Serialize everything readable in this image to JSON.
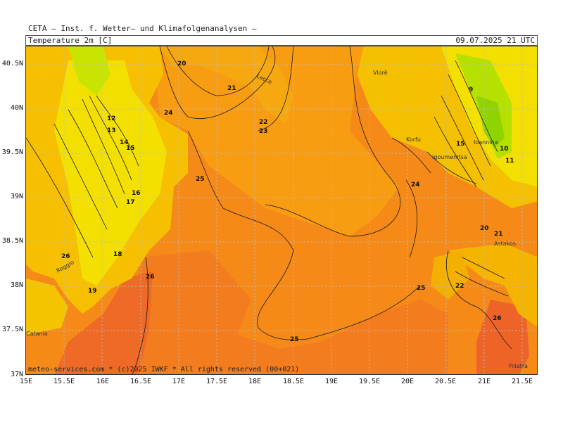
{
  "header": {
    "title": "CETA — Inst. f. Wetter— und Klimafolgenanalysen —",
    "variable": "Temperature 2m [C]",
    "valid_time": "09.07.2025 21 UTC"
  },
  "footer": {
    "credit": "meteo-services.com * (c)2025 IWKF * All rights reserved (00+021)"
  },
  "axes": {
    "lat_ticks": [
      "40.5N",
      "40N",
      "39.5N",
      "39N",
      "38.5N",
      "38N",
      "37.5N",
      "37N"
    ],
    "lon_ticks": [
      "15E",
      "15.5E",
      "16E",
      "16.5E",
      "17E",
      "17.5E",
      "18E",
      "18.5E",
      "19E",
      "19.5E",
      "20E",
      "20.5E",
      "21E",
      "21.5E"
    ]
  },
  "palette": {
    "land_cool": "#b7e000",
    "land_mild": "#f6e100",
    "land_warm": "#f4b800",
    "sea_main": "#f79a10",
    "sea_warm": "#f07a20",
    "sea_hot": "#ee6428",
    "contour": "#1a1a1a",
    "grid": "#bdbdbd"
  },
  "contour_labels": [
    "20",
    "21",
    "22",
    "23",
    "24",
    "25",
    "26",
    "12",
    "13",
    "14",
    "15",
    "16",
    "17",
    "18",
    "19",
    "9",
    "10",
    "11",
    "15",
    "25",
    "25",
    "26",
    "26",
    "24",
    "22",
    "21",
    "20"
  ],
  "place_names": [
    "Lecce",
    "Vlorë",
    "Korfu",
    "Igoumenitsa",
    "Ioannina",
    "Astakos",
    "Reggio",
    "Catania",
    "Filiatra"
  ]
}
